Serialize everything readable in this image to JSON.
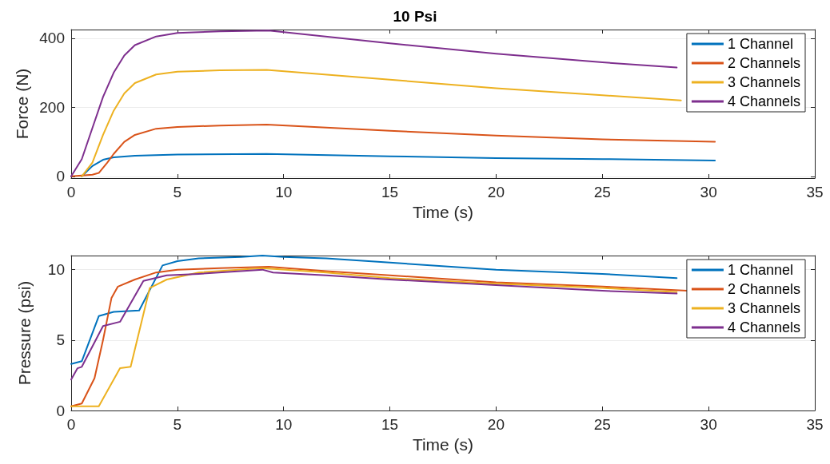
{
  "chart_data": [
    {
      "type": "line",
      "title": "10 Psi",
      "xlabel": "Time (s)",
      "ylabel": "Force (N)",
      "xlim": [
        0,
        35
      ],
      "xticks": [
        0,
        5,
        10,
        15,
        20,
        25,
        30,
        35
      ],
      "ylim": [
        -5,
        425
      ],
      "yticks": [
        0,
        200,
        400
      ],
      "grid": "y",
      "legend": "top right",
      "line_style": "solid",
      "marker": "none",
      "series": [
        {
          "name": "1 Channel",
          "color": "#0072bd",
          "x": [
            0.5,
            1,
            1.5,
            2,
            3,
            5,
            9.2,
            15,
            20,
            25,
            30.3
          ],
          "values": [
            0,
            30,
            48,
            55,
            60,
            63,
            65,
            58,
            53,
            50,
            46
          ]
        },
        {
          "name": "2 Channels",
          "color": "#d95319",
          "x": [
            0,
            1,
            1.3,
            1.7,
            2,
            2.5,
            3,
            4,
            5,
            7,
            9.2,
            15,
            20,
            25,
            30.3
          ],
          "values": [
            0,
            5,
            10,
            40,
            65,
            100,
            120,
            138,
            143,
            147,
            150,
            132,
            118,
            107,
            100
          ]
        },
        {
          "name": "3 Channels",
          "color": "#edb120",
          "x": [
            0.5,
            1,
            1.5,
            2,
            2.5,
            3,
            4,
            5,
            7,
            9.2,
            15,
            20,
            25,
            28.7
          ],
          "values": [
            0,
            40,
            120,
            190,
            240,
            270,
            295,
            303,
            307,
            308,
            280,
            255,
            235,
            220
          ]
        },
        {
          "name": "4 Channels",
          "color": "#7e2f8e",
          "x": [
            0,
            0.5,
            1,
            1.5,
            2,
            2.5,
            3,
            4,
            5,
            7,
            9.3,
            15,
            20,
            25,
            28.5
          ],
          "values": [
            0,
            50,
            140,
            230,
            300,
            350,
            380,
            405,
            415,
            420,
            422,
            385,
            355,
            330,
            315
          ]
        }
      ]
    },
    {
      "type": "line",
      "xlabel": "Time (s)",
      "ylabel": "Pressure (psi)",
      "xlim": [
        0,
        35
      ],
      "xticks": [
        0,
        5,
        10,
        15,
        20,
        25,
        30,
        35
      ],
      "ylim": [
        0,
        11
      ],
      "yticks": [
        0,
        5,
        10
      ],
      "grid": "y",
      "legend": "top right",
      "line_style": "solid",
      "marker": "none",
      "series": [
        {
          "name": "1 Channel",
          "color": "#0072bd",
          "x": [
            0,
            0.5,
            1.3,
            2,
            3.2,
            4.3,
            5,
            6,
            8,
            9,
            10,
            12,
            15,
            20,
            25,
            28.5
          ],
          "values": [
            3.3,
            3.5,
            6.7,
            7,
            7.1,
            10.3,
            10.6,
            10.8,
            10.9,
            11,
            10.9,
            10.8,
            10.5,
            10,
            9.7,
            9.4
          ]
        },
        {
          "name": "2 Channels",
          "color": "#d95319",
          "x": [
            0,
            0.5,
            1.1,
            1.5,
            1.9,
            2.2,
            3,
            4,
            5,
            7,
            9.3,
            12,
            15,
            20,
            25,
            29
          ],
          "values": [
            0.3,
            0.5,
            2.3,
            5,
            8,
            8.8,
            9.3,
            9.8,
            10,
            10.1,
            10.2,
            9.9,
            9.6,
            9.1,
            8.8,
            8.5
          ]
        },
        {
          "name": "3 Channels",
          "color": "#edb120",
          "x": [
            0,
            1.3,
            2.3,
            2.8,
            3.7,
            4.5,
            6,
            9,
            12,
            15,
            20,
            25,
            28.5
          ],
          "values": [
            0.3,
            0.3,
            3,
            3.1,
            8.7,
            9.3,
            9.8,
            10.1,
            9.8,
            9.4,
            9,
            8.7,
            8.4
          ]
        },
        {
          "name": "4 Channels",
          "color": "#7e2f8e",
          "x": [
            0,
            0.3,
            0.5,
            1.5,
            2.3,
            3.4,
            4.5,
            6,
            9,
            9.5,
            12,
            15,
            20,
            25,
            28.5
          ],
          "values": [
            2.2,
            3,
            3.1,
            6,
            6.3,
            9.2,
            9.6,
            9.7,
            10,
            9.8,
            9.6,
            9.3,
            8.9,
            8.5,
            8.3
          ]
        }
      ]
    }
  ]
}
